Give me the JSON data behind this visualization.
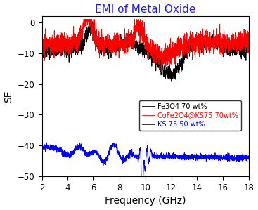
{
  "title": "EMI of Metal Oxide",
  "xlabel": "Frequency (GHz)",
  "ylabel": "SE",
  "xlim": [
    2,
    18
  ],
  "ylim": [
    -50,
    2
  ],
  "yticks": [
    0,
    -10,
    -20,
    -30,
    -40,
    -50
  ],
  "xticks": [
    2,
    4,
    6,
    8,
    10,
    12,
    14,
    16,
    18
  ],
  "legend": [
    {
      "label": "Fe3O4 70 wt%",
      "color": "black"
    },
    {
      "label": "CoFe2O4@KS75 70wt%",
      "color": "red"
    },
    {
      "label": "KS 75 50 wt%",
      "color": "blue"
    }
  ],
  "title_color": "#1a1aff",
  "title_fontsize": 11,
  "axis_label_fontsize": 10
}
